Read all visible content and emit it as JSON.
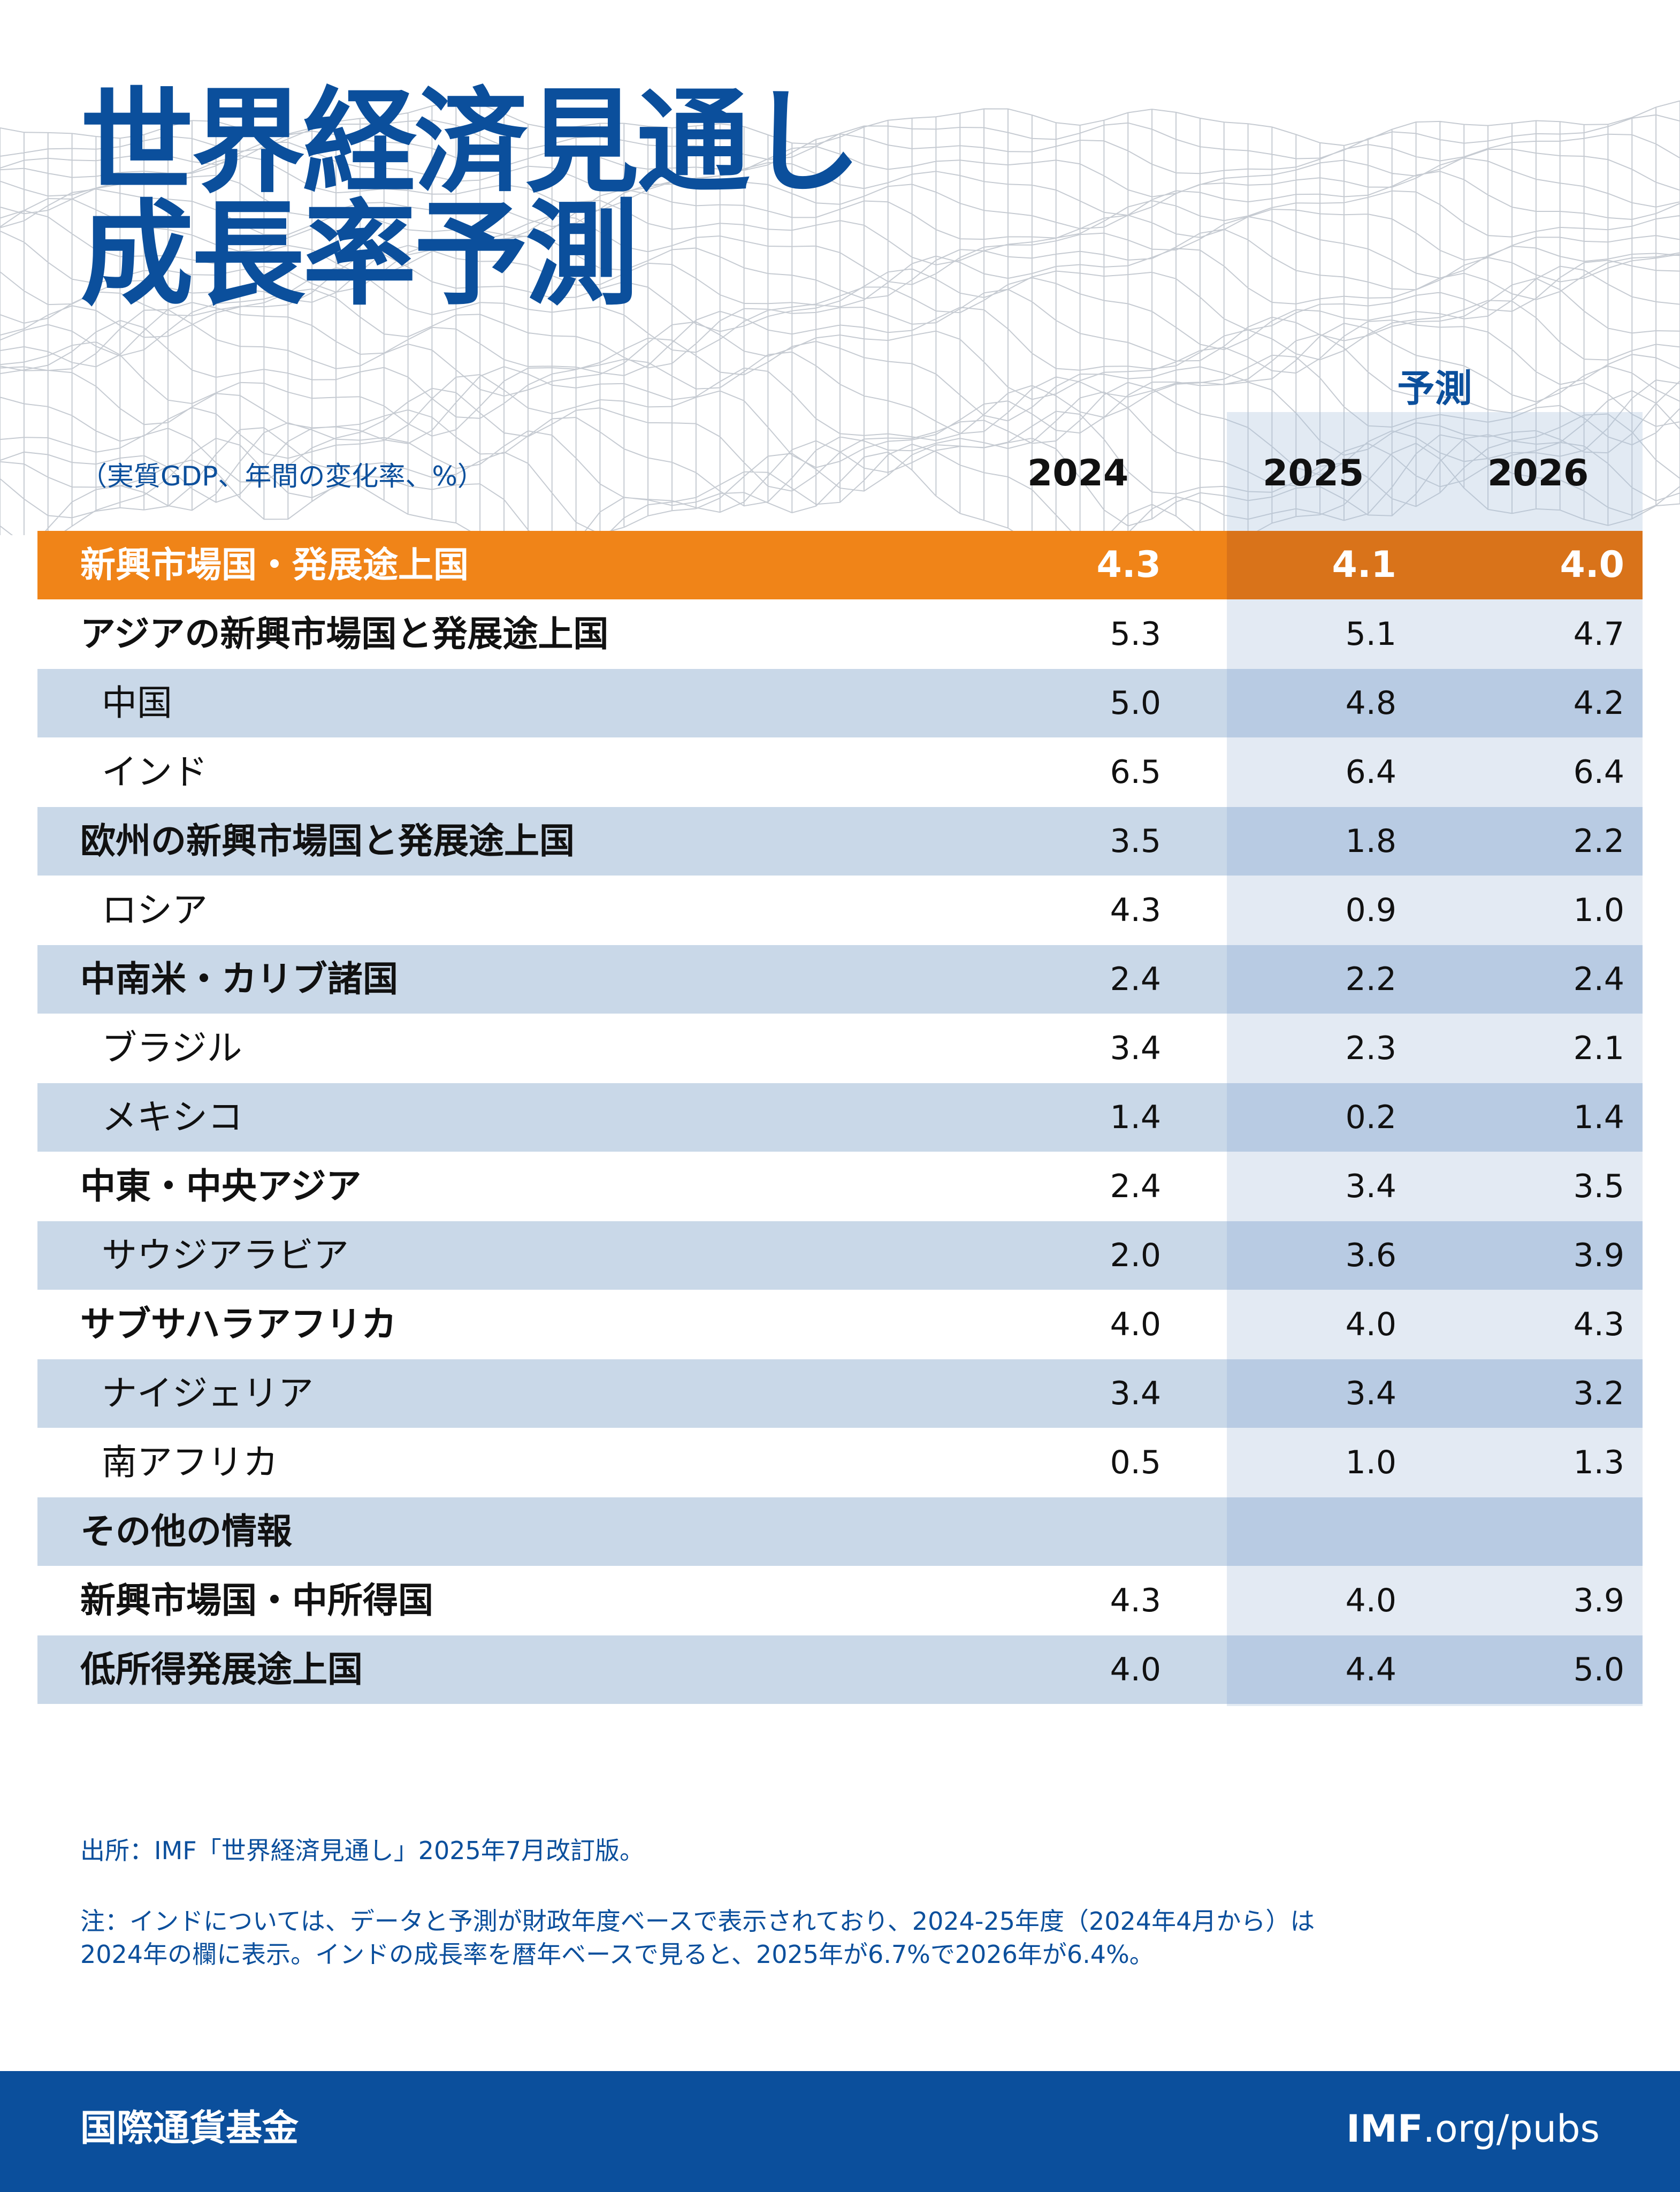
{
  "title_line1": "世界経済見通し",
  "title_line2": "成長率予測",
  "unit_label": "（実質GDP、年間の変化率、%）",
  "forecast_label": "予測",
  "chart_data": {
    "type": "table",
    "columns": [
      "2024",
      "2025",
      "2026"
    ],
    "rows": [
      {
        "label": "新興市場国・発展途上国",
        "values": [
          "4.3",
          "4.1",
          "4.0"
        ],
        "style": "headline"
      },
      {
        "label": "アジアの新興市場国と発展途上国",
        "values": [
          "5.3",
          "5.1",
          "4.7"
        ],
        "style": "bold"
      },
      {
        "label": "中国",
        "values": [
          "5.0",
          "4.8",
          "4.2"
        ],
        "style": "indent"
      },
      {
        "label": "インド",
        "values": [
          "6.5",
          "6.4",
          "6.4"
        ],
        "style": "indent"
      },
      {
        "label": "欧州の新興市場国と発展途上国",
        "values": [
          "3.5",
          "1.8",
          "2.2"
        ],
        "style": "bold"
      },
      {
        "label": "ロシア",
        "values": [
          "4.3",
          "0.9",
          "1.0"
        ],
        "style": "indent"
      },
      {
        "label": "中南米・カリブ諸国",
        "values": [
          "2.4",
          "2.2",
          "2.4"
        ],
        "style": "bold"
      },
      {
        "label": "ブラジル",
        "values": [
          "3.4",
          "2.3",
          "2.1"
        ],
        "style": "indent"
      },
      {
        "label": "メキシコ",
        "values": [
          "1.4",
          "0.2",
          "1.4"
        ],
        "style": "indent"
      },
      {
        "label": "中東・中央アジア",
        "values": [
          "2.4",
          "3.4",
          "3.5"
        ],
        "style": "bold"
      },
      {
        "label": "サウジアラビア",
        "values": [
          "2.0",
          "3.6",
          "3.9"
        ],
        "style": "indent"
      },
      {
        "label": "サブサハラアフリカ",
        "values": [
          "4.0",
          "4.0",
          "4.3"
        ],
        "style": "bold"
      },
      {
        "label": "ナイジェリア",
        "values": [
          "3.4",
          "3.4",
          "3.2"
        ],
        "style": "indent"
      },
      {
        "label": "南アフリカ",
        "values": [
          "0.5",
          "1.0",
          "1.3"
        ],
        "style": "indent"
      },
      {
        "label": "その他の情報",
        "values": [
          "",
          "",
          ""
        ],
        "style": "bold"
      },
      {
        "label": "新興市場国・中所得国",
        "values": [
          "4.3",
          "4.0",
          "3.9"
        ],
        "style": "bold"
      },
      {
        "label": "低所得発展途上国",
        "values": [
          "4.0",
          "4.4",
          "5.0"
        ],
        "style": "bold"
      }
    ]
  },
  "source_note": "出所：IMF「世界経済見通し」2025年7月改訂版。",
  "note_line1": "注：インドについては、データと予測が財政年度ベースで表示されており、2024-25年度（2024年4月から）は",
  "note_line2": "2024年の欄に表示。インドの成長率を暦年ベースで見ると、2025年が6.7%で2026年が6.4%。",
  "footer": {
    "org_name": "国際通貨基金",
    "url_bold": "IMF",
    "url_rest": ".org/pubs"
  },
  "colors": {
    "title_blue": "#0b4f9c",
    "headline_orange": "#f08418",
    "row_shade": "#c9d8e8",
    "footer_blue": "#0b4f9c"
  }
}
